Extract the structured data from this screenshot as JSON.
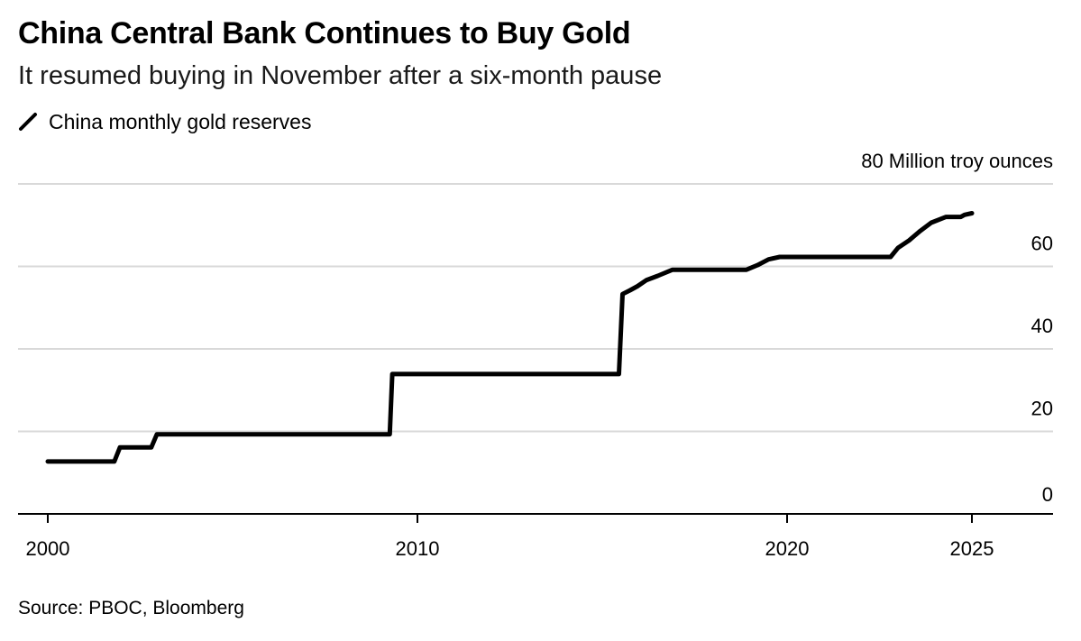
{
  "title": "China Central Bank Continues to Buy Gold",
  "subtitle": "It resumed buying in November after a six-month pause",
  "legend_label": "China monthly gold reserves",
  "source": "Source: PBOC, Bloomberg",
  "colors": {
    "line": "#000000",
    "grid": "#d9d9d9",
    "axis": "#000000"
  },
  "chart_data": {
    "type": "line",
    "series": [
      {
        "name": "China monthly gold reserves",
        "x": [
          2000.0,
          2001.8,
          2001.95,
          2002.8,
          2002.95,
          2009.25,
          2009.32,
          2015.45,
          2015.55,
          2015.75,
          2015.95,
          2016.2,
          2016.5,
          2016.9,
          2018.9,
          2019.2,
          2019.5,
          2019.8,
          2022.8,
          2023.0,
          2023.3,
          2023.6,
          2023.9,
          2024.3,
          2024.7,
          2024.8,
          2025.0
        ],
        "y": [
          12.7,
          12.7,
          16.1,
          16.1,
          19.3,
          19.3,
          33.9,
          33.9,
          53.3,
          54.2,
          55.2,
          56.7,
          57.7,
          59.2,
          59.2,
          60.3,
          61.7,
          62.3,
          62.3,
          64.5,
          66.3,
          68.6,
          70.6,
          72.0,
          72.0,
          72.5,
          72.9
        ]
      }
    ],
    "xlim": [
      2000,
      2027.5
    ],
    "ylim": [
      0,
      80
    ],
    "xticks": [
      2000,
      2010,
      2020,
      2025
    ],
    "xtick_labels": [
      "2000",
      "2010",
      "2020",
      "2025"
    ],
    "yticks": [
      0,
      20,
      40,
      60,
      80
    ],
    "ytick_labels": [
      "0",
      "20",
      "40",
      "60",
      "80 Million troy ounces"
    ],
    "grid": true,
    "legend_position": "top-left"
  }
}
